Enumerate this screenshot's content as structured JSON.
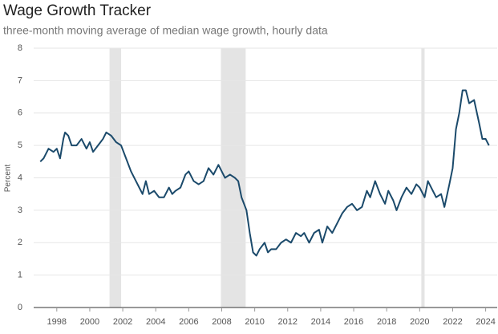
{
  "chart_data": {
    "type": "line",
    "title": "Wage Growth Tracker",
    "subtitle": "three-month moving average of median wage growth, hourly data",
    "y_label": "Percent",
    "color": "#1b4a6b",
    "shading_color": "#e4e4e4",
    "grid": true,
    "shading": [
      [
        2001.2,
        2001.9
      ],
      [
        2007.95,
        2009.45
      ],
      [
        2020.1,
        2020.3
      ]
    ],
    "x": [
      1997.0,
      1997.2,
      1997.5,
      1997.8,
      1998.0,
      1998.2,
      1998.4,
      1998.5,
      1998.7,
      1998.9,
      1999.2,
      1999.5,
      1999.8,
      2000.0,
      2000.2,
      2000.5,
      2000.8,
      2001.0,
      2001.3,
      2001.6,
      2001.9,
      2002.2,
      2002.5,
      2002.8,
      2003.0,
      2003.2,
      2003.4,
      2003.6,
      2003.9,
      2004.2,
      2004.5,
      2004.8,
      2005.0,
      2005.2,
      2005.5,
      2005.8,
      2006.0,
      2006.3,
      2006.6,
      2006.9,
      2007.2,
      2007.5,
      2007.8,
      2008.0,
      2008.2,
      2008.5,
      2008.8,
      2009.0,
      2009.2,
      2009.5,
      2009.7,
      2009.9,
      2010.1,
      2010.3,
      2010.6,
      2010.8,
      2011.0,
      2011.3,
      2011.6,
      2011.9,
      2012.2,
      2012.5,
      2012.8,
      2013.0,
      2013.3,
      2013.6,
      2013.9,
      2014.1,
      2014.4,
      2014.7,
      2015.0,
      2015.3,
      2015.6,
      2015.9,
      2016.2,
      2016.5,
      2016.8,
      2017.0,
      2017.3,
      2017.6,
      2017.9,
      2018.1,
      2018.4,
      2018.6,
      2018.9,
      2019.2,
      2019.5,
      2019.8,
      2020.0,
      2020.3,
      2020.5,
      2020.8,
      2021.0,
      2021.3,
      2021.5,
      2021.8,
      2022.0,
      2022.2,
      2022.4,
      2022.6,
      2022.8,
      2023.0,
      2023.3,
      2023.6,
      2023.8,
      2024.0,
      2024.2
    ],
    "values": [
      4.5,
      4.6,
      4.9,
      4.8,
      4.9,
      4.6,
      5.2,
      5.4,
      5.3,
      5.0,
      5.0,
      5.2,
      4.9,
      5.1,
      4.8,
      5.0,
      5.2,
      5.4,
      5.3,
      5.1,
      5.0,
      4.6,
      4.2,
      3.9,
      3.7,
      3.5,
      3.9,
      3.5,
      3.6,
      3.4,
      3.4,
      3.7,
      3.5,
      3.6,
      3.7,
      4.1,
      4.2,
      3.9,
      3.8,
      3.9,
      4.3,
      4.1,
      4.4,
      4.2,
      4.0,
      4.1,
      4.0,
      3.9,
      3.4,
      3.0,
      2.3,
      1.7,
      1.6,
      1.8,
      2.0,
      1.7,
      1.8,
      1.8,
      2.0,
      2.1,
      2.0,
      2.3,
      2.2,
      2.3,
      2.0,
      2.3,
      2.4,
      2.0,
      2.5,
      2.3,
      2.6,
      2.9,
      3.1,
      3.2,
      3.0,
      3.1,
      3.6,
      3.4,
      3.9,
      3.5,
      3.2,
      3.6,
      3.3,
      3.0,
      3.4,
      3.7,
      3.5,
      3.8,
      3.7,
      3.4,
      3.9,
      3.6,
      3.4,
      3.5,
      3.1,
      3.8,
      4.3,
      5.5,
      6.0,
      6.7,
      6.7,
      6.3,
      6.4,
      5.7,
      5.2,
      5.2,
      5.0
    ],
    "xlim": [
      1996.6,
      2024.7
    ],
    "xticks": [
      1998,
      2000,
      2002,
      2004,
      2006,
      2008,
      2010,
      2012,
      2014,
      2016,
      2018,
      2020,
      2022,
      2024
    ],
    "ylim": [
      0,
      8
    ],
    "yticks": [
      0,
      1,
      2,
      3,
      4,
      5,
      6,
      7,
      8
    ]
  }
}
